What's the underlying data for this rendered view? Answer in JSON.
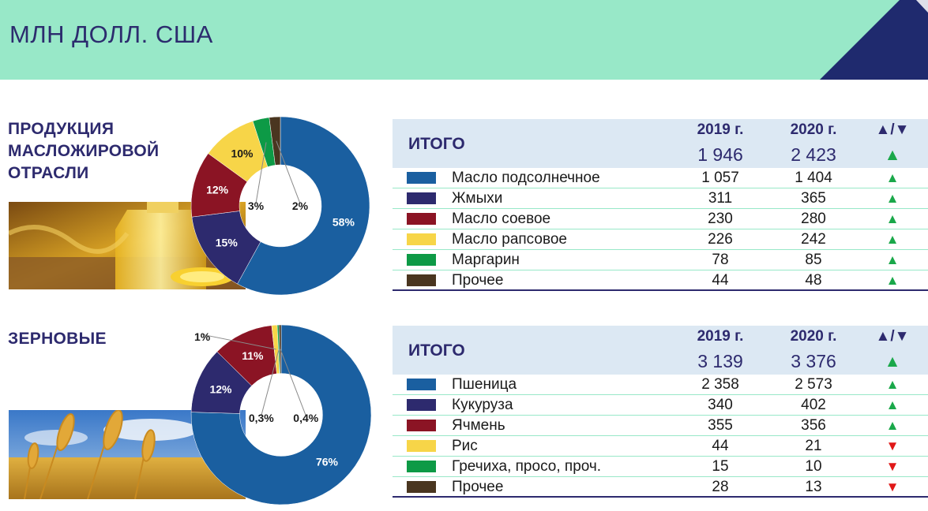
{
  "header": {
    "title": "МЛН ДОЛЛ. США",
    "bg_color": "#98e8c8",
    "accent_color": "#1f2a6e"
  },
  "sections": [
    {
      "label_lines": [
        "ПРОДУКЦИЯ",
        "МАСЛОЖИРОВОЙ",
        "ОТРАСЛИ"
      ],
      "photo": "sunflower-oil-bottle-photo",
      "table": {
        "total_label": "ИТОГО",
        "year1": "2019 г.",
        "year2": "2020 г.",
        "arrow_header": "▲/▼",
        "total1": "1 946",
        "total2": "2 423",
        "total_trend": "up",
        "rows": [
          {
            "name": "Масло подсолнечное",
            "v2019": "1 057",
            "v2020": "1 404",
            "trend": "up",
            "color": "#1a5fa0"
          },
          {
            "name": "Жмыхи",
            "v2019": "311",
            "v2020": "365",
            "trend": "up",
            "color": "#2d2a6e"
          },
          {
            "name": "Масло соевое",
            "v2019": "230",
            "v2020": "280",
            "trend": "up",
            "color": "#8b1424"
          },
          {
            "name": "Масло рапсовое",
            "v2019": "226",
            "v2020": "242",
            "trend": "up",
            "color": "#f7d548"
          },
          {
            "name": "Маргарин",
            "v2019": "78",
            "v2020": "85",
            "trend": "up",
            "color": "#0d9a46"
          },
          {
            "name": "Прочее",
            "v2019": "44",
            "v2020": "48",
            "trend": "up",
            "color": "#4a3620"
          }
        ]
      }
    },
    {
      "label_lines": [
        "ЗЕРНОВЫЕ"
      ],
      "photo": "wheat-field-photo",
      "table": {
        "total_label": "ИТОГО",
        "year1": "2019 г.",
        "year2": "2020 г.",
        "arrow_header": "▲/▼",
        "total1": "3 139",
        "total2": "3 376",
        "total_trend": "up",
        "rows": [
          {
            "name": "Пшеница",
            "v2019": "2 358",
            "v2020": "2 573",
            "trend": "up",
            "color": "#1a5fa0"
          },
          {
            "name": "Кукуруза",
            "v2019": "340",
            "v2020": "402",
            "trend": "up",
            "color": "#2d2a6e"
          },
          {
            "name": "Ячмень",
            "v2019": "355",
            "v2020": "356",
            "trend": "up",
            "color": "#8b1424"
          },
          {
            "name": "Рис",
            "v2019": "44",
            "v2020": "21",
            "trend": "down",
            "color": "#f7d548"
          },
          {
            "name": "Гречиха, просо, проч.",
            "v2019": "15",
            "v2020": "10",
            "trend": "down",
            "color": "#0d9a46"
          },
          {
            "name": "Прочее",
            "v2019": "28",
            "v2020": "13",
            "trend": "down",
            "color": "#4a3620"
          }
        ]
      }
    }
  ],
  "chart_data": [
    {
      "type": "pie",
      "donut": true,
      "categories": [
        "Масло подсолнечное",
        "Жмыхи",
        "Масло соевое",
        "Масло рапсовое",
        "Маргарин",
        "Прочее"
      ],
      "values": [
        58,
        15,
        12,
        10,
        3,
        2
      ],
      "labels": [
        "58%",
        "15%",
        "12%",
        "10%",
        "3%",
        "2%"
      ],
      "colors": [
        "#1a5fa0",
        "#2d2a6e",
        "#8b1424",
        "#f7d548",
        "#0d9a46",
        "#4a3620"
      ]
    },
    {
      "type": "pie",
      "donut": true,
      "categories": [
        "Пшеница",
        "Кукуруза",
        "Ячмень",
        "Рис",
        "Гречиха, просо, проч.",
        "Прочее"
      ],
      "values": [
        76,
        12,
        11,
        1,
        0.3,
        0.4
      ],
      "labels": [
        "76%",
        "12%",
        "11%",
        "1%",
        "0,3%",
        "0,4%"
      ],
      "colors": [
        "#1a5fa0",
        "#2d2a6e",
        "#8b1424",
        "#f7d548",
        "#0d9a46",
        "#4a3620"
      ]
    }
  ],
  "trend_symbols": {
    "up": "▲",
    "down": "▼"
  }
}
